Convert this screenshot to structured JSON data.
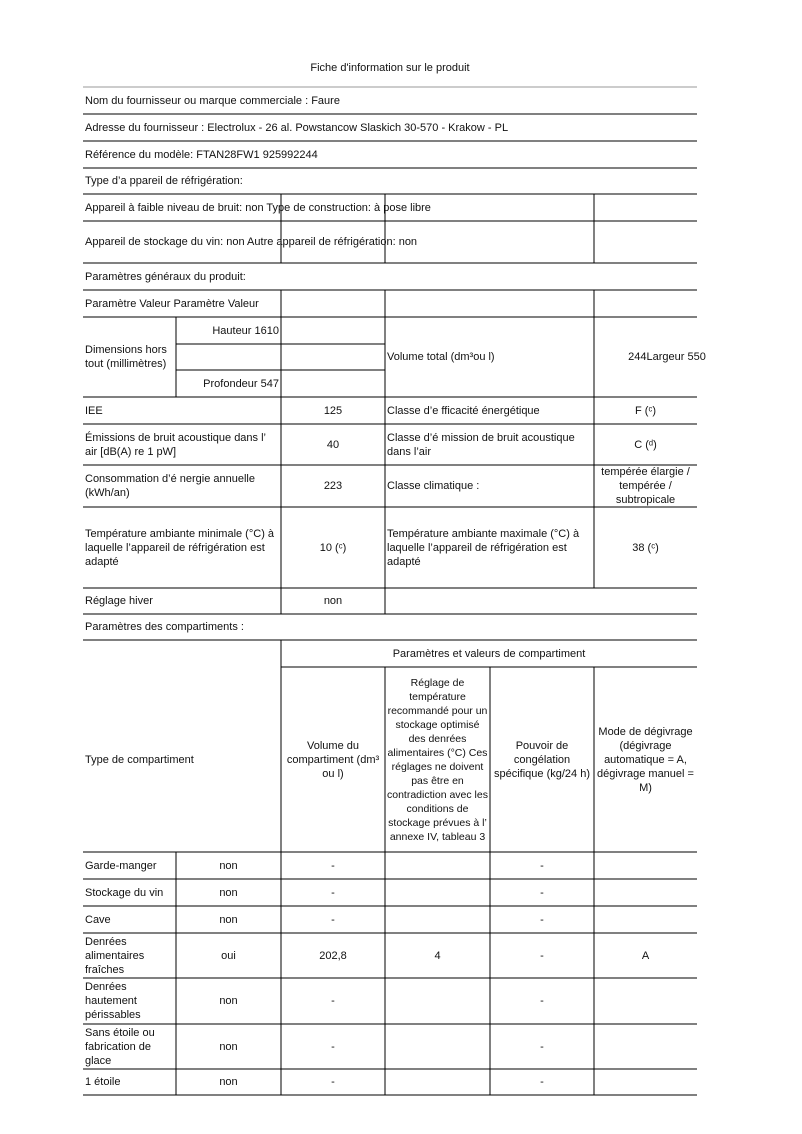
{
  "title": "Fiche d'information sur le produit",
  "supplier": {
    "name": "Nom du fournisseur ou marque commerciale : Faure",
    "address": "Adresse du fournisseur : Electrolux - 26 al. Powstancow Slaskich 30-570 - Krakow - PL",
    "model": "Référence du modèle: FTAN28FW1 925992244"
  },
  "appliance_type": {
    "heading": "Type d’a ppareil de réfrigération:",
    "line1": "Appareil à faible niveau de bruit: non Type de construction: à pose libre",
    "line2": "Appareil de stockage du vin: non Autre appareil de réfrigération: non"
  },
  "general": {
    "heading": "Paramètres généraux du produit:",
    "header": "Paramètre Valeur Paramètre Valeur",
    "dimensions": {
      "label": "Dimensions hors tout (millimètres)",
      "height": "Hauteur 1610",
      "depth": "Profondeur 547"
    },
    "volume": {
      "label": "Volume total (dm³ou l)",
      "value": "244Largeur 550"
    },
    "rows": [
      {
        "label": "IEE",
        "value": "125",
        "label2": "Classe d’e fficacité énergétique",
        "value2": "F (ᶜ)"
      },
      {
        "label": "Émissions de bruit acoustique dans l’ air [dB(A) re 1 pW]",
        "value": "40",
        "label2": "Classe d’é mission de bruit acoustique dans l’air",
        "value2": "C (ᵈ)"
      },
      {
        "label": "Consommation d’é nergie annuelle (kWh/an)",
        "value": "223",
        "label2": "Classe climatique :",
        "value2": "tempérée élargie / tempérée / subtropicale"
      },
      {
        "label": "Température ambiante minimale (°C) à laquelle l’appareil de réfrigération est adapté",
        "value": "10 (ᶜ)",
        "label2": "Température ambiante maximale (°C) à laquelle l’appareil de réfrigération est adapté",
        "value2": "38 (ᶜ)"
      }
    ],
    "winter": {
      "label": "Réglage hiver",
      "value": "non"
    }
  },
  "compartments": {
    "heading": "Paramètres des compartiments :",
    "group_header": "Paramètres et valeurs de compartiment",
    "columns": [
      "Type de compartiment",
      "Volume du compartiment (dm³ ou l)",
      "Réglage de température recommandé pour un stockage optimisé des denrées alimentaires (°C) Ces réglages ne doivent pas être en contradiction avec les conditions de stockage prévues à l’ annexe IV, tableau 3",
      "Pouvoir de congélation spécifique (kg/24 h)",
      "Mode de dégivrage (dégivrage automatique = A, dégivrage manuel = M)"
    ],
    "rows": [
      [
        "Garde-manger",
        "non",
        "-",
        null,
        "-",
        null
      ],
      [
        "Stockage du vin",
        "non",
        "-",
        null,
        "-",
        null
      ],
      [
        "Cave",
        "non",
        "-",
        null,
        "-",
        null
      ],
      [
        "Denrées alimentaires fraîches",
        "oui",
        "202,8",
        "4",
        "-",
        "A"
      ],
      [
        "Denrées hautement périssables",
        "non",
        "-",
        null,
        "-",
        null
      ],
      [
        "Sans étoile ou fabrication de glace",
        "non",
        "-",
        null,
        "-",
        null
      ],
      [
        "1 étoile",
        "non",
        "-",
        null,
        "-",
        null
      ]
    ]
  }
}
